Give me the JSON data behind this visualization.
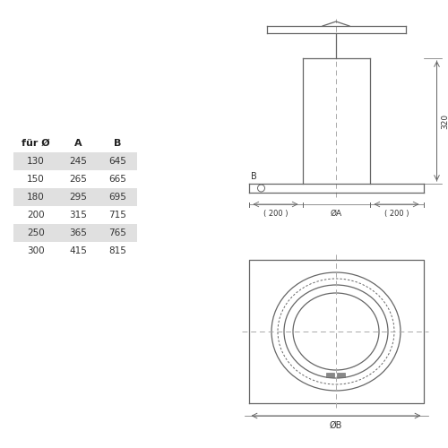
{
  "bg_color": "#ffffff",
  "line_color": "#666666",
  "dash_color": "#aaaaaa",
  "highlight_rows": [
    0,
    2,
    4
  ],
  "table_headers": [
    "für Ø",
    "A",
    "B"
  ],
  "table_data": [
    [
      130,
      245,
      645
    ],
    [
      150,
      265,
      665
    ],
    [
      180,
      295,
      695
    ],
    [
      200,
      315,
      715
    ],
    [
      250,
      365,
      765
    ],
    [
      300,
      415,
      815
    ]
  ],
  "dim_320": "320",
  "dim_200_left": "( 200 )",
  "dim_200_right": "( 200 )",
  "dim_phiA": "ØA",
  "dim_B_label": "B",
  "dim_phiB": "ØB",
  "header_fontsize": 8,
  "table_fontsize": 7.5
}
